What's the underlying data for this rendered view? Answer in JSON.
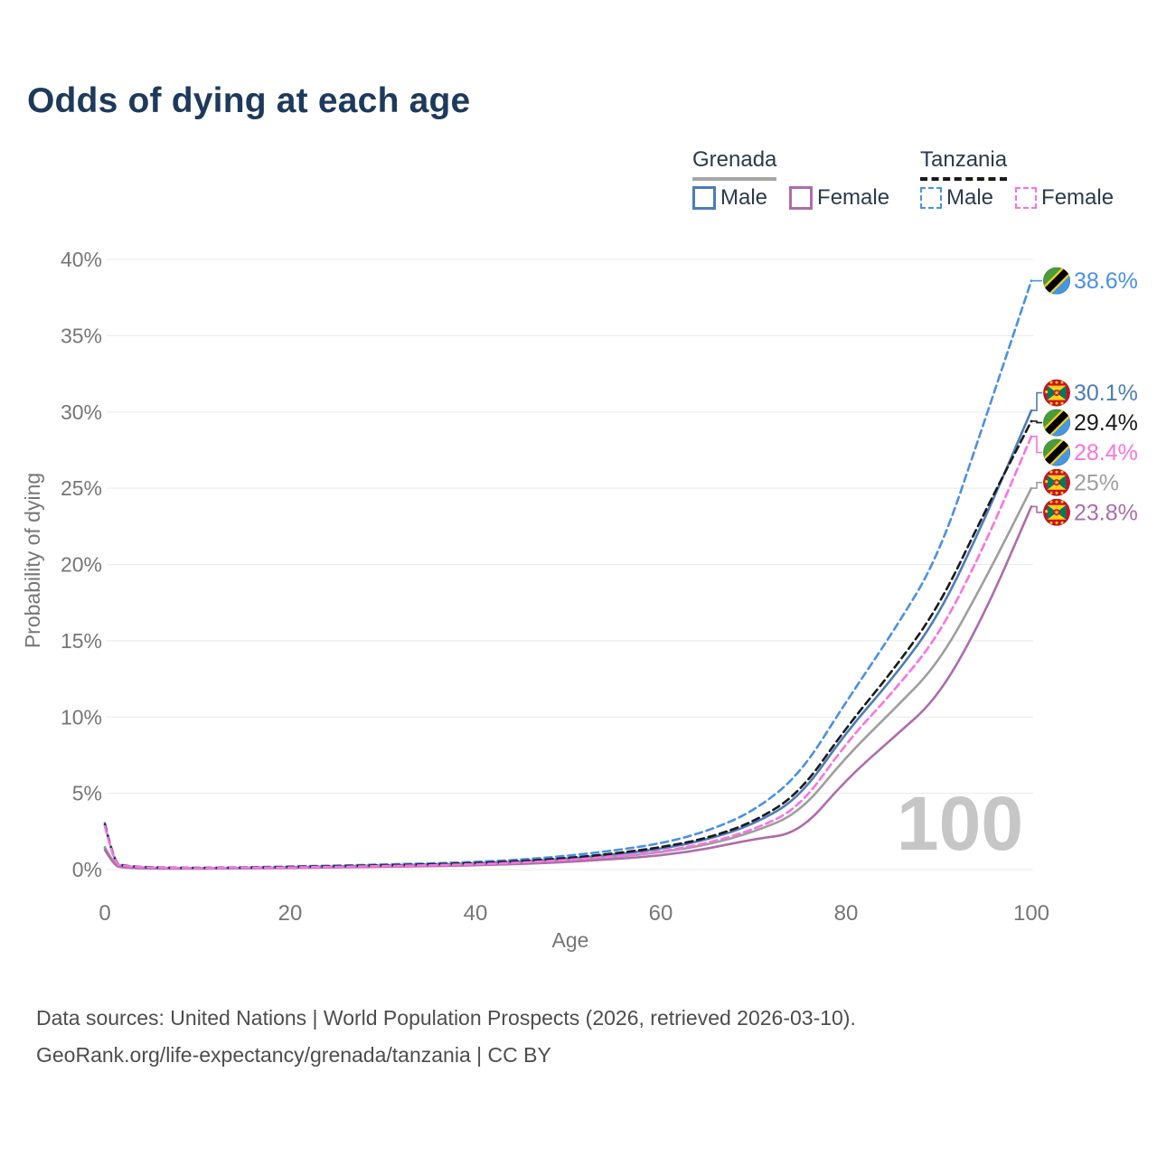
{
  "title": "Odds of dying at each age",
  "legend": {
    "groups": [
      {
        "country": "Grenada",
        "line_style": "solid",
        "underline_color": "#a6a6a6",
        "items": [
          {
            "label": "Male",
            "color": "#4d7cb8",
            "dashed": false
          },
          {
            "label": "Female",
            "color": "#ae6cac",
            "dashed": false
          }
        ]
      },
      {
        "country": "Tanzania",
        "line_style": "dashed",
        "underline_color": "#1a1a1a",
        "items": [
          {
            "label": "Male",
            "color": "#4a90e8",
            "dashed": true
          },
          {
            "label": "Female",
            "color": "#fb72e3",
            "dashed": true
          }
        ]
      }
    ]
  },
  "chart_data": {
    "type": "line",
    "title": "Odds of dying at each age",
    "xlabel": "Age",
    "ylabel": "Probability of dying",
    "xlim": [
      0,
      100
    ],
    "ylim": [
      0,
      40
    ],
    "grid": "horizontal",
    "legend_position": "top-right",
    "watermark": "100",
    "xticks": [
      {
        "value": 0,
        "label": "0"
      },
      {
        "value": 20,
        "label": "20"
      },
      {
        "value": 40,
        "label": "40"
      },
      {
        "value": 60,
        "label": "60"
      },
      {
        "value": 80,
        "label": "80"
      },
      {
        "value": 100,
        "label": "100"
      }
    ],
    "yticks": [
      {
        "value": 0,
        "label": "0%"
      },
      {
        "value": 5,
        "label": "5%"
      },
      {
        "value": 10,
        "label": "10%"
      },
      {
        "value": 15,
        "label": "15%"
      },
      {
        "value": 20,
        "label": "20%"
      },
      {
        "value": 25,
        "label": "25%"
      },
      {
        "value": 30,
        "label": "30%"
      },
      {
        "value": 35,
        "label": "35%"
      },
      {
        "value": 40,
        "label": "40%"
      }
    ],
    "x": [
      0,
      1,
      2,
      5,
      10,
      15,
      20,
      25,
      30,
      35,
      40,
      45,
      50,
      55,
      60,
      65,
      70,
      75,
      80,
      85,
      90,
      95,
      100
    ],
    "series": [
      {
        "name": "Tanzania Male",
        "country": "tanzania",
        "sex": "male",
        "dashed": true,
        "color": "#4a90e8",
        "end_label": "38.6%",
        "values": [
          3.05,
          0.45,
          0.25,
          0.14,
          0.11,
          0.14,
          0.2,
          0.26,
          0.33,
          0.4,
          0.5,
          0.65,
          0.9,
          1.25,
          1.7,
          2.5,
          3.8,
          6.2,
          11.0,
          15.5,
          20.5,
          29.5,
          38.6
        ]
      },
      {
        "name": "Grenada Male",
        "country": "grenada",
        "sex": "male",
        "dashed": false,
        "color": "#4d7cb8",
        "end_label": "30.1%",
        "values": [
          1.45,
          0.3,
          0.15,
          0.09,
          0.08,
          0.1,
          0.15,
          0.2,
          0.26,
          0.32,
          0.4,
          0.52,
          0.72,
          0.98,
          1.35,
          1.95,
          2.95,
          4.7,
          9.0,
          12.5,
          16.6,
          23.0,
          30.1
        ]
      },
      {
        "name": "Tanzania Total",
        "country": "tanzania",
        "sex": "total",
        "dashed": true,
        "color": "#1a1a1a",
        "end_label": "29.4%",
        "values": [
          2.95,
          0.42,
          0.23,
          0.13,
          0.1,
          0.12,
          0.17,
          0.22,
          0.28,
          0.34,
          0.42,
          0.55,
          0.75,
          1.05,
          1.45,
          2.05,
          3.1,
          5.0,
          9.3,
          13.0,
          17.2,
          23.5,
          29.4
        ]
      },
      {
        "name": "Tanzania Female",
        "country": "tanzania",
        "sex": "female",
        "dashed": true,
        "color": "#fb72e3",
        "end_label": "28.4%",
        "values": [
          2.85,
          0.4,
          0.22,
          0.12,
          0.09,
          0.11,
          0.14,
          0.18,
          0.23,
          0.28,
          0.35,
          0.46,
          0.63,
          0.86,
          1.18,
          1.72,
          2.6,
          4.05,
          8.3,
          11.6,
          15.3,
          21.3,
          28.4
        ]
      },
      {
        "name": "Grenada Total",
        "country": "grenada",
        "sex": "total",
        "dashed": false,
        "color": "#9e9e9e",
        "end_label": "25%",
        "values": [
          1.4,
          0.28,
          0.14,
          0.08,
          0.07,
          0.09,
          0.13,
          0.17,
          0.22,
          0.27,
          0.33,
          0.44,
          0.6,
          0.82,
          1.12,
          1.62,
          2.45,
          3.7,
          7.4,
          10.4,
          13.5,
          19.0,
          25.0
        ]
      },
      {
        "name": "Grenada Female",
        "country": "grenada",
        "sex": "female",
        "dashed": false,
        "color": "#ae6cac",
        "end_label": "23.8%",
        "values": [
          1.3,
          0.25,
          0.12,
          0.07,
          0.06,
          0.08,
          0.11,
          0.14,
          0.18,
          0.22,
          0.28,
          0.37,
          0.5,
          0.68,
          0.92,
          1.35,
          2.0,
          2.4,
          5.9,
          8.6,
          11.3,
          16.8,
          23.8
        ]
      }
    ]
  },
  "footer": {
    "line1": "Data sources: United Nations | World Population Prospects (2026, retrieved 2026-03-10).",
    "line2": "GeoRank.org/life-expectancy/grenada/tanzania | CC BY"
  },
  "colors": {
    "title": "#1d3a5c",
    "axis_text": "#767676",
    "grid": "#ededed",
    "watermark": "#c6c6c6",
    "footer_text": "#4d4d4d",
    "flag_tanzania": [
      "#4b9b3d",
      "#4796e3",
      "#fcd116",
      "#000000"
    ],
    "flag_grenada": [
      "#ce1126",
      "#007a5e",
      "#fcd116"
    ]
  }
}
